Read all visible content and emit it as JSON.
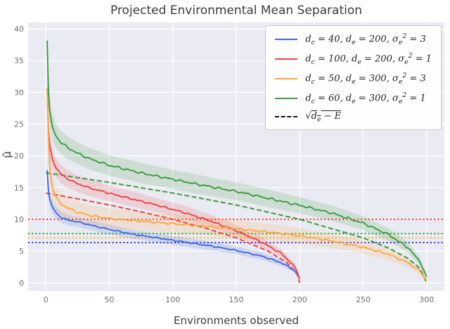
{
  "figure": {
    "bg": "#ffffff",
    "plot_bg": "#eaeaf2",
    "grid_color": "#ffffff",
    "tick_color": "#6f6f6f",
    "text_color": "#3c3c3c"
  },
  "chart_data": {
    "type": "line",
    "title": "Projected Environmental Mean Separation",
    "xlabel": "Environments observed",
    "ylabel": "μ̃",
    "xlim": [
      -14,
      314
    ],
    "ylim": [
      -1.3,
      41
    ],
    "xticks": [
      0,
      50,
      100,
      150,
      200,
      250,
      300
    ],
    "yticks": [
      0,
      5,
      10,
      15,
      20,
      25,
      30,
      35,
      40
    ],
    "grid": true,
    "legend_position": "upper right",
    "series": [
      {
        "name": "dc40-de200-s3",
        "label": "d_c = 40, d_e = 200, σ_e^2 = 3",
        "color": "#4169e1",
        "noise": 0.12,
        "x": [
          1,
          2,
          3,
          5,
          8,
          12,
          17,
          25,
          35,
          50,
          70,
          90,
          110,
          130,
          150,
          170,
          185,
          195,
          199,
          200
        ],
        "y": [
          17.8,
          14.5,
          13.2,
          12.0,
          11.0,
          10.3,
          9.9,
          9.6,
          9.1,
          8.4,
          7.6,
          7.0,
          6.4,
          5.8,
          5.1,
          4.2,
          3.2,
          2.1,
          1.1,
          0.6
        ],
        "band": [
          1.6,
          1.3,
          1.1,
          1.0,
          0.9,
          0.9,
          0.8,
          0.8,
          0.8,
          0.8,
          0.7,
          0.7,
          0.7,
          0.7,
          0.6,
          0.6,
          0.5,
          0.4,
          0.3,
          0.2
        ]
      },
      {
        "name": "dc100-de200-s1",
        "label": "d_c = 100, d_e = 200, σ_e^2 = 1",
        "color": "#ef4444",
        "noise": 0.15,
        "x": [
          1,
          2,
          3,
          5,
          8,
          12,
          17,
          25,
          35,
          50,
          70,
          90,
          110,
          130,
          150,
          170,
          185,
          195,
          199,
          200
        ],
        "y": [
          30.6,
          24.0,
          21.5,
          19.6,
          18.1,
          17.1,
          16.4,
          15.6,
          14.9,
          14.1,
          13.1,
          12.1,
          11.0,
          9.7,
          8.2,
          6.4,
          4.7,
          2.8,
          1.3,
          0.7
        ],
        "band": [
          2.4,
          2.0,
          1.8,
          1.6,
          1.5,
          1.4,
          1.4,
          1.3,
          1.3,
          1.2,
          1.2,
          1.1,
          1.1,
          1.0,
          0.9,
          0.8,
          0.6,
          0.5,
          0.3,
          0.2
        ]
      },
      {
        "name": "dc50-de300-s3",
        "label": "d_c = 50, d_e = 300, σ_e^2 = 3",
        "color": "#ffa640",
        "noise": 0.18,
        "x": [
          1,
          2,
          3,
          5,
          8,
          12,
          17,
          25,
          35,
          50,
          75,
          100,
          125,
          150,
          175,
          200,
          225,
          250,
          270,
          285,
          295,
          300
        ],
        "y": [
          30.7,
          23.0,
          18.2,
          15.1,
          13.4,
          12.4,
          11.8,
          11.1,
          10.6,
          10.1,
          9.7,
          9.3,
          8.9,
          8.5,
          8.0,
          7.4,
          6.6,
          5.6,
          4.5,
          3.2,
          1.8,
          0.4
        ],
        "band": [
          3.0,
          2.6,
          2.3,
          2.1,
          1.9,
          1.8,
          1.7,
          1.7,
          1.6,
          1.6,
          1.5,
          1.5,
          1.4,
          1.4,
          1.3,
          1.2,
          1.1,
          1.0,
          0.9,
          0.7,
          0.5,
          0.2
        ]
      },
      {
        "name": "dc60-de300-s1",
        "label": "d_c = 60, d_e = 300, σ_e^2 = 1",
        "color": "#3b9c3b",
        "noise": 0.2,
        "x": [
          1,
          2,
          3,
          5,
          8,
          12,
          17,
          25,
          35,
          50,
          75,
          100,
          125,
          150,
          175,
          200,
          225,
          250,
          270,
          285,
          295,
          300
        ],
        "y": [
          38.3,
          30.2,
          27.0,
          24.6,
          23.1,
          22.1,
          21.3,
          20.4,
          19.5,
          18.5,
          17.3,
          16.3,
          15.3,
          14.4,
          13.3,
          12.2,
          11.0,
          9.4,
          7.6,
          5.6,
          3.3,
          0.8
        ],
        "band": [
          2.8,
          2.4,
          2.2,
          2.0,
          1.9,
          1.8,
          1.8,
          1.7,
          1.7,
          1.6,
          1.6,
          1.5,
          1.5,
          1.4,
          1.4,
          1.3,
          1.2,
          1.1,
          1.0,
          0.8,
          0.6,
          0.3
        ]
      }
    ],
    "dashed_label": "√{d_e − E}",
    "dashed_color": "#111111",
    "dashed_reference": [
      {
        "name": "sqrt-de200-minus-E",
        "color": "#ef4444",
        "x": [
          0,
          25,
          50,
          75,
          100,
          125,
          150,
          175,
          190,
          198,
          200
        ],
        "y": [
          14.14,
          13.23,
          12.25,
          11.18,
          10.0,
          8.66,
          7.07,
          5.0,
          3.16,
          1.41,
          0
        ]
      },
      {
        "name": "sqrt-de300-minus-E",
        "color": "#3b9c3b",
        "x": [
          0,
          50,
          100,
          150,
          200,
          250,
          270,
          285,
          295,
          300
        ],
        "y": [
          17.32,
          15.81,
          14.14,
          12.25,
          10.0,
          7.07,
          5.48,
          3.87,
          2.24,
          0
        ]
      }
    ],
    "dotted_hlines": [
      {
        "name": "sqrt-dc100",
        "color": "#ff0000",
        "y": 10.0
      },
      {
        "name": "sqrt-dc60",
        "color": "#00a000",
        "y": 7.75
      },
      {
        "name": "sqrt-dc50",
        "color": "#ffa500",
        "y": 7.07
      },
      {
        "name": "sqrt-dc40",
        "color": "#0000ee",
        "y": 6.32
      }
    ]
  }
}
